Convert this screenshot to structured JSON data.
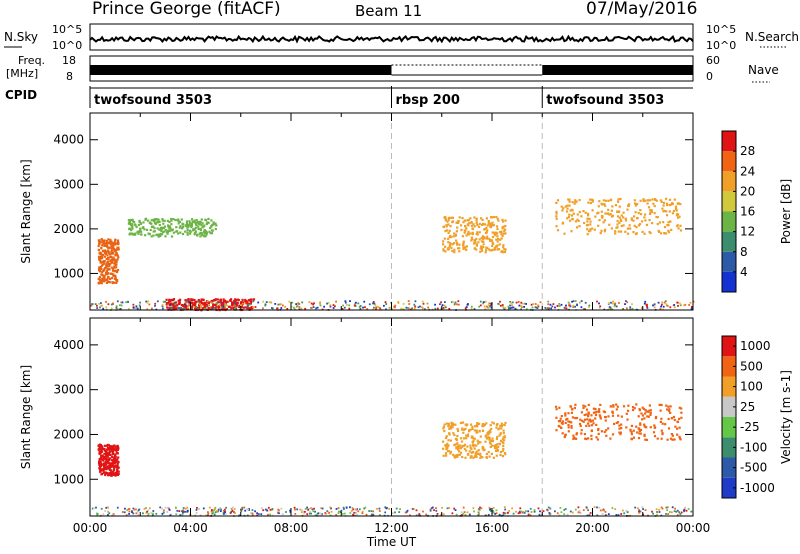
{
  "header": {
    "station": "Prince George (fitACF)",
    "beam": "Beam 11",
    "date": "07/May/2016"
  },
  "top_panel": {
    "left_label": "N.Sky",
    "left_ticks": [
      "10^5",
      "10^0"
    ],
    "right_ticks": [
      "10^5",
      "10^0"
    ],
    "right_label": "N.Search"
  },
  "freq_panel": {
    "left_label_1": "Freq.",
    "left_label_2": "[MHz]",
    "left_ticks": [
      "18",
      "8"
    ],
    "right_ticks": [
      "60",
      "0"
    ],
    "right_label": "Nave"
  },
  "cpid": {
    "label": "CPID",
    "segments": [
      {
        "name": "twofsound 3503",
        "start_hour": 0
      },
      {
        "name": "rbsp 200",
        "start_hour": 12
      },
      {
        "name": "twofsound 3503",
        "start_hour": 18
      }
    ]
  },
  "chart_data": [
    {
      "type": "heatmap",
      "name": "power-panel",
      "ylabel": "Slant Range [km]",
      "yticks": [
        1000,
        2000,
        3000,
        4000
      ],
      "ylim": [
        180,
        4600
      ],
      "xlim": [
        0,
        24
      ],
      "colorbar": {
        "label": "Power [dB]",
        "ticks": [
          "4",
          "8",
          "12",
          "16",
          "20",
          "24",
          "28"
        ],
        "colors": [
          "#1432d2",
          "#2c5aa8",
          "#3c8c6e",
          "#6cb446",
          "#d2c83c",
          "#f0a028",
          "#f06414",
          "#e01414"
        ]
      },
      "echo_regions": [
        {
          "t0": 0.3,
          "t1": 1.1,
          "r0": 800,
          "r1": 1800,
          "color": "#e86414"
        },
        {
          "t0": 3.0,
          "t1": 6.5,
          "r0": 200,
          "r1": 450,
          "color": "#e01414"
        },
        {
          "t0": 1.5,
          "t1": 5.0,
          "r0": 1850,
          "r1": 2250,
          "color": "#6cb446"
        },
        {
          "t0": 14.0,
          "t1": 16.5,
          "r0": 1500,
          "r1": 2300,
          "color": "#f0a028"
        },
        {
          "t0": 18.5,
          "t1": 23.5,
          "r0": 1900,
          "r1": 2700,
          "color": "#f0a028"
        }
      ]
    },
    {
      "type": "heatmap",
      "name": "velocity-panel",
      "ylabel": "Slant Range [km]",
      "yticks": [
        1000,
        2000,
        3000,
        4000
      ],
      "ylim": [
        180,
        4600
      ],
      "xlim": [
        0,
        24
      ],
      "xticks": [
        "00:00",
        "04:00",
        "08:00",
        "12:00",
        "16:00",
        "20:00",
        "00:00"
      ],
      "xlabel": "Time UT",
      "colorbar": {
        "label": "Velocity [m s-1]",
        "ticks": [
          "1000",
          "500",
          "100",
          "25",
          "-25",
          "-100",
          "-500",
          "-1000"
        ],
        "colors": [
          "#1e3cc8",
          "#2c5aa8",
          "#3c8c6e",
          "#64c846",
          "#c8c8c8",
          "#f0a028",
          "#f06414",
          "#e01414"
        ]
      },
      "echo_regions": [
        {
          "t0": 0.3,
          "t1": 1.1,
          "r0": 1100,
          "r1": 1800,
          "color": "#e01414"
        },
        {
          "t0": 18.5,
          "t1": 23.5,
          "r0": 1900,
          "r1": 2700,
          "color": "#f06414"
        },
        {
          "t0": 14.0,
          "t1": 16.5,
          "r0": 1500,
          "r1": 2300,
          "color": "#f0a028"
        }
      ]
    }
  ]
}
